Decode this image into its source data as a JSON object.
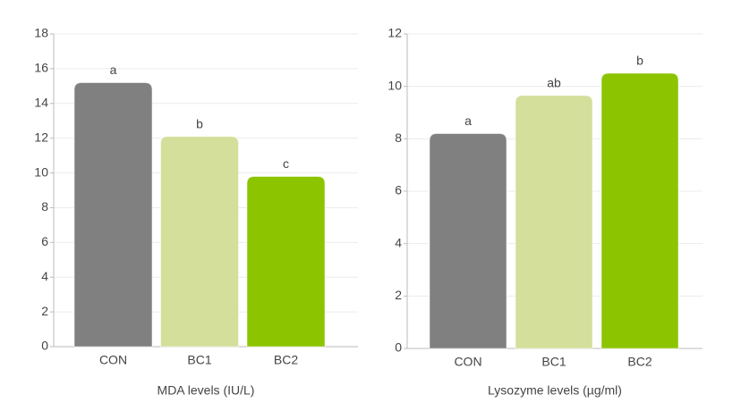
{
  "chart_data": [
    {
      "type": "bar",
      "x_label": "MDA levels (IU/L)",
      "categories": [
        "CON",
        "BC1",
        "BC2"
      ],
      "values": [
        15.2,
        12.1,
        9.8
      ],
      "annotations": [
        "a",
        "b",
        "c"
      ],
      "colors": [
        "#808080",
        "#d3df9a",
        "#8cc400"
      ],
      "ylim": [
        0,
        18
      ],
      "yticks": [
        0,
        2,
        4,
        6,
        8,
        10,
        12,
        14,
        16,
        18
      ],
      "grid": true
    },
    {
      "type": "bar",
      "x_label": "Lysozyme levels (µg/ml)",
      "categories": [
        "CON",
        "BC1",
        "BC2"
      ],
      "values": [
        8.2,
        9.65,
        10.5
      ],
      "annotations": [
        "a",
        "ab",
        "b"
      ],
      "colors": [
        "#808080",
        "#d3df9a",
        "#8cc400"
      ],
      "ylim": [
        0,
        12
      ],
      "yticks": [
        0,
        2,
        4,
        6,
        8,
        10,
        12
      ],
      "grid": true
    }
  ]
}
